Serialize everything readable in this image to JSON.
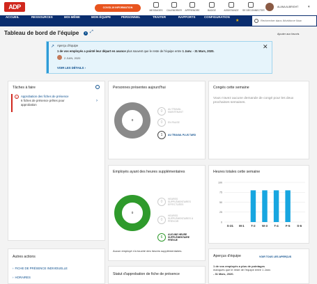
{
  "header": {
    "logo": "ADP",
    "covid_button": "COVID-19 INFORMATION",
    "icons": [
      {
        "name": "messages-icon",
        "label": "MESSAGES"
      },
      {
        "name": "calendar-icon",
        "label": "CALENDRIER"
      },
      {
        "name": "learning-icon",
        "label": "APPRENDRE"
      },
      {
        "name": "badge-icon",
        "label": "BADGE"
      },
      {
        "name": "help-icon",
        "label": "ASSISTANCE"
      },
      {
        "name": "logout-icon",
        "label": "SE DÉCONNECTER"
      }
    ],
    "user_name": "ALANA ALBRIGHT"
  },
  "nav": {
    "items": [
      "ACCUEIL",
      "RESSOURCES",
      "MOI-MÊME",
      "MON ÉQUIPE",
      "PERSONNEL",
      "TRAITER",
      "RAPPORTS",
      "CONFIGURATION"
    ],
    "search_placeholder": "Rechercher dans Workforce Now"
  },
  "page": {
    "title": "Tableau de bord de l'équipe",
    "favorites": "Ajouter aux favoris"
  },
  "insight": {
    "heading": "Aperçu d'équipe",
    "body_pre": "1 de vos employés a pointé leur départ en avance",
    "body_mid": " plus souvent que le reste de l'équipe entre ",
    "body_dates": "1 Janv. - 31 Mars, 2020.",
    "date": "2 JUIN, 2020",
    "more": "VOIR LES DÉTAILS"
  },
  "tasks": {
    "title": "Tâches à faire",
    "item_title": "Approbation des fiches de présence",
    "item_line2": "6 fiches de présence prêtes pour",
    "item_line3": "approbation"
  },
  "present": {
    "title": "Personnes présentes aujourd'hui",
    "center": "0",
    "legend": [
      {
        "value": "0",
        "label1": "AU TRAVAIL",
        "label2": "MAINTENANT"
      },
      {
        "value": "0",
        "label1": "EN PAUSE",
        "label2": ""
      },
      {
        "value": "1",
        "label1": "AU TRAVAIL PLUS TARD",
        "label2": ""
      }
    ]
  },
  "conge": {
    "title": "Congés cette semaine",
    "text": "Vous n'avez aucune demande de congé pour les deux prochaines semaines."
  },
  "overtime": {
    "title": "Employés ayant des heures supplémentaires",
    "center": "0",
    "legend": [
      {
        "value": "0",
        "label": "HEURES SUPPLÉMENTAIRES EFFECTUÉES"
      },
      {
        "value": "0",
        "label": "HEURES SUPPLÉMENTAIRES À PRÉVOIR"
      },
      {
        "value": "6",
        "label": "AUCUNE HEURE SUPPLÉMENTAIRE PRÉVUE"
      }
    ],
    "note": "Aucun employé n'a touché des heures supplémentaires."
  },
  "hours": {
    "title": "Heures totales cette semaine",
    "legend": "PROGRAMMÉES"
  },
  "chart_data": {
    "type": "bar",
    "title": "Heures totales cette semaine",
    "categories": [
      "S-31",
      "M-1",
      "T-2",
      "W-3",
      "T-4",
      "F-5",
      "S-6"
    ],
    "series": [
      {
        "name": "PROGRAMMÉES",
        "values": [
          0,
          0,
          80,
          80,
          80,
          80,
          0
        ]
      }
    ],
    "ylim": [
      0,
      100
    ],
    "yticks": [
      0,
      25,
      50,
      75,
      100
    ]
  },
  "other": {
    "title": "Autres actions",
    "links": [
      "FICHE DE PRÉSENCE INDIVIDUELLE",
      "HORAIRES"
    ]
  },
  "approval": {
    "title": "Statut d'approbation de fiche de présence"
  },
  "team_insight": {
    "title": "Aperçus d'équipe",
    "link": "VOIR TOUS LES APERÇUS",
    "text1": "1 de vos employés a plus de pointages",
    "text2": "manqués que le reste de l'équipe entre 1 Janv.",
    "text3": "- 31 Mars, 2020."
  }
}
